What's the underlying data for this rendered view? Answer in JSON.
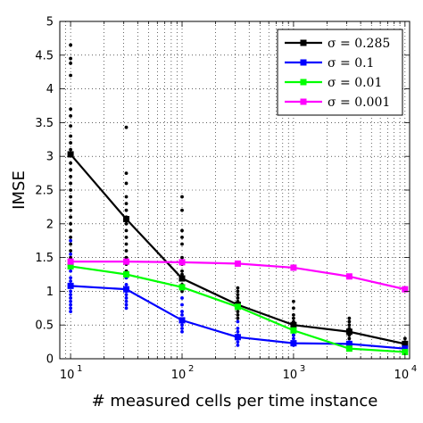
{
  "chart_data": {
    "type": "line",
    "title": "",
    "xlabel": "# measured cells per time instance",
    "ylabel": "IMSE",
    "xscale": "log",
    "xlim": [
      8,
      11000
    ],
    "ylim": [
      0,
      5
    ],
    "grid": true,
    "legend_position": "top-right",
    "x_ticks": [
      {
        "value": 10,
        "base": "10",
        "exp": "1"
      },
      {
        "value": 100,
        "base": "10",
        "exp": "2"
      },
      {
        "value": 1000,
        "base": "10",
        "exp": "3"
      },
      {
        "value": 10000,
        "base": "10",
        "exp": "4"
      }
    ],
    "y_ticks": [
      {
        "value": 0,
        "label": "0"
      },
      {
        "value": 0.5,
        "label": "0.5"
      },
      {
        "value": 1,
        "label": "1"
      },
      {
        "value": 1.5,
        "label": "1.5"
      },
      {
        "value": 2,
        "label": "2"
      },
      {
        "value": 2.5,
        "label": "2.5"
      },
      {
        "value": 3,
        "label": "3"
      },
      {
        "value": 3.5,
        "label": "3.5"
      },
      {
        "value": 4,
        "label": "4"
      },
      {
        "value": 4.5,
        "label": "4.5"
      },
      {
        "value": 5,
        "label": "5"
      }
    ],
    "x": [
      10,
      31.6,
      100,
      316,
      1000,
      3162,
      10000
    ],
    "series": [
      {
        "name": "σ = 0.285",
        "color": "#000000",
        "values": [
          3.03,
          2.07,
          1.19,
          0.8,
          0.5,
          0.4,
          0.22
        ],
        "scatter": [
          [
            [
              10,
              4.65
            ],
            [
              10,
              4.45
            ],
            [
              10,
              4.38
            ],
            [
              10,
              4.2
            ],
            [
              10,
              3.7
            ],
            [
              10,
              3.6
            ],
            [
              10,
              3.45
            ],
            [
              10,
              3.3
            ],
            [
              10,
              3.2
            ],
            [
              10,
              3.1
            ],
            [
              10,
              2.9
            ],
            [
              10,
              2.8
            ],
            [
              10,
              2.7
            ],
            [
              10,
              2.6
            ],
            [
              10,
              2.5
            ],
            [
              10,
              2.4
            ],
            [
              10,
              2.3
            ],
            [
              10,
              2.2
            ],
            [
              10,
              2.1
            ],
            [
              10,
              2.0
            ],
            [
              10,
              1.9
            ],
            [
              10,
              1.8
            ],
            [
              10,
              1.7
            ],
            [
              10,
              1.6
            ],
            [
              10,
              1.5
            ]
          ],
          [
            [
              31.6,
              3.43
            ],
            [
              31.6,
              2.75
            ],
            [
              31.6,
              2.6
            ],
            [
              31.6,
              2.4
            ],
            [
              31.6,
              2.3
            ],
            [
              31.6,
              2.2
            ],
            [
              31.6,
              2.1
            ],
            [
              31.6,
              2.0
            ],
            [
              31.6,
              1.9
            ],
            [
              31.6,
              1.8
            ],
            [
              31.6,
              1.7
            ],
            [
              31.6,
              1.6
            ],
            [
              31.6,
              1.5
            ],
            [
              31.6,
              1.4
            ],
            [
              31.6,
              1.3
            ],
            [
              31.6,
              1.2
            ]
          ],
          [
            [
              100,
              2.4
            ],
            [
              100,
              2.2
            ],
            [
              100,
              1.9
            ],
            [
              100,
              1.8
            ],
            [
              100,
              1.7
            ],
            [
              100,
              1.5
            ],
            [
              100,
              1.4
            ],
            [
              100,
              1.3
            ],
            [
              100,
              1.25
            ],
            [
              100,
              1.1
            ],
            [
              100,
              1.05
            ],
            [
              100,
              1.0
            ]
          ],
          [
            [
              316,
              1.05
            ],
            [
              316,
              1.0
            ],
            [
              316,
              0.95
            ],
            [
              316,
              0.9
            ],
            [
              316,
              0.85
            ],
            [
              316,
              0.75
            ],
            [
              316,
              0.7
            ],
            [
              316,
              0.65
            ],
            [
              316,
              0.6
            ]
          ],
          [
            [
              1000,
              0.85
            ],
            [
              1000,
              0.75
            ],
            [
              1000,
              0.65
            ],
            [
              1000,
              0.6
            ],
            [
              1000,
              0.55
            ],
            [
              1000,
              0.45
            ],
            [
              1000,
              0.4
            ],
            [
              1000,
              0.35
            ]
          ],
          [
            [
              3162,
              0.6
            ],
            [
              3162,
              0.55
            ],
            [
              3162,
              0.5
            ],
            [
              3162,
              0.45
            ],
            [
              3162,
              0.35
            ],
            [
              3162,
              0.3
            ]
          ],
          [
            [
              10000,
              0.3
            ],
            [
              10000,
              0.25
            ],
            [
              10000,
              0.18
            ]
          ]
        ]
      },
      {
        "name": "σ = 0.1",
        "color": "#0000ff",
        "values": [
          1.08,
          1.03,
          0.57,
          0.32,
          0.23,
          0.22,
          0.15
        ],
        "scatter": [
          [
            [
              10,
              1.75
            ],
            [
              10,
              1.55
            ],
            [
              10,
              1.45
            ],
            [
              10,
              1.35
            ],
            [
              10,
              1.3
            ],
            [
              10,
              1.2
            ],
            [
              10,
              1.15
            ],
            [
              10,
              1.0
            ],
            [
              10,
              0.95
            ],
            [
              10,
              0.9
            ],
            [
              10,
              0.85
            ],
            [
              10,
              0.8
            ],
            [
              10,
              0.75
            ],
            [
              10,
              0.7
            ]
          ],
          [
            [
              31.6,
              1.25
            ],
            [
              31.6,
              1.2
            ],
            [
              31.6,
              1.1
            ],
            [
              31.6,
              1.0
            ],
            [
              31.6,
              0.95
            ],
            [
              31.6,
              0.9
            ],
            [
              31.6,
              0.85
            ],
            [
              31.6,
              0.8
            ],
            [
              31.6,
              0.75
            ]
          ],
          [
            [
              100,
              0.9
            ],
            [
              100,
              0.8
            ],
            [
              100,
              0.7
            ],
            [
              100,
              0.65
            ],
            [
              100,
              0.5
            ],
            [
              100,
              0.45
            ],
            [
              100,
              0.4
            ]
          ],
          [
            [
              316,
              0.55
            ],
            [
              316,
              0.45
            ],
            [
              316,
              0.4
            ],
            [
              316,
              0.35
            ],
            [
              316,
              0.25
            ],
            [
              316,
              0.2
            ]
          ],
          [
            [
              1000,
              0.35
            ],
            [
              1000,
              0.3
            ],
            [
              1000,
              0.25
            ],
            [
              1000,
              0.2
            ]
          ],
          [
            [
              3162,
              0.25
            ],
            [
              3162,
              0.2
            ]
          ],
          [
            [
              10000,
              0.18
            ],
            [
              10000,
              0.13
            ]
          ]
        ]
      },
      {
        "name": "σ = 0.01",
        "color": "#00ff00",
        "values": [
          1.37,
          1.25,
          1.06,
          0.77,
          0.42,
          0.15,
          0.1
        ],
        "scatter": []
      },
      {
        "name": "σ = 0.001",
        "color": "#ff00ff",
        "values": [
          1.44,
          1.44,
          1.43,
          1.41,
          1.35,
          1.22,
          1.03
        ],
        "scatter": []
      }
    ]
  }
}
